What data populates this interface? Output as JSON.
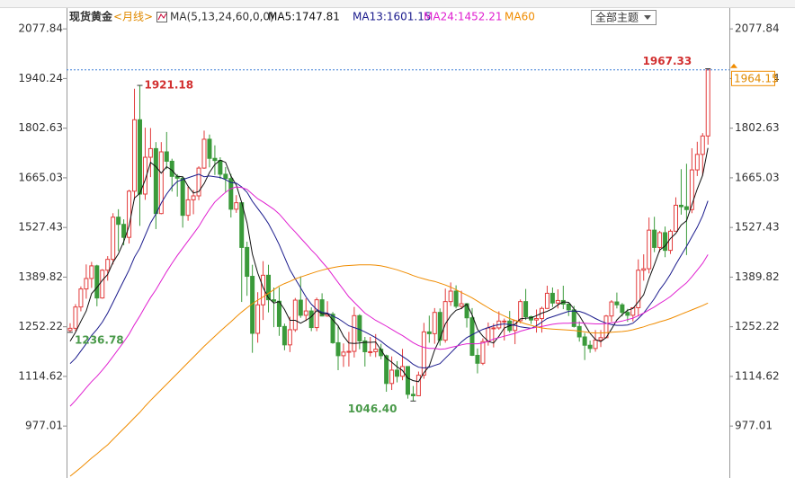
{
  "chart_data": {
    "type": "candlestick",
    "title": "现货黄金",
    "subtitle": "<月线>",
    "indicator": "MA(5,13,24,60,0,0)",
    "ylim": [
      833,
      2133
    ],
    "yticks": [
      977.01,
      1114.62,
      1252.22,
      1389.82,
      1527.43,
      1665.03,
      1802.63,
      1940.24,
      2077.84
    ],
    "up_color": "#e23b3b",
    "down_color": "#3a9a3a",
    "categories": [
      null,
      null,
      null,
      null,
      null,
      null,
      null,
      null,
      null,
      null,
      null,
      null,
      null,
      null,
      null,
      null,
      null,
      null,
      null,
      null,
      null,
      null,
      null,
      null,
      null,
      null,
      null,
      null,
      null,
      null,
      null,
      null,
      null,
      null,
      null,
      null,
      null,
      null,
      null,
      null,
      null,
      null,
      null,
      null,
      null,
      null,
      null,
      null,
      null,
      null,
      null,
      null,
      null,
      null,
      null,
      null,
      null,
      null,
      null,
      null,
      null,
      null,
      null,
      null,
      null,
      null,
      null,
      null,
      null,
      null,
      null,
      null,
      null,
      null,
      null,
      null,
      null,
      null,
      null,
      null,
      null,
      null,
      null,
      null,
      null,
      null,
      null,
      null,
      null,
      null,
      null,
      null,
      null,
      null,
      null,
      null,
      null,
      null,
      null,
      null,
      null,
      null,
      null,
      null,
      null,
      null,
      null,
      null,
      null,
      null,
      null,
      null,
      null,
      null,
      null,
      null,
      null,
      null,
      null,
      null
    ],
    "open": [
      1242,
      1248,
      1307,
      1357,
      1386,
      1421,
      1332,
      1409,
      1439,
      1556,
      1536,
      1500,
      1628,
      1826,
      1620,
      1722,
      1746,
      1566,
      1737,
      1711,
      1669,
      1664,
      1561,
      1604,
      1615,
      1692,
      1772,
      1719,
      1713,
      1675,
      1663,
      1578,
      1596,
      1472,
      1392,
      1234,
      1313,
      1395,
      1327,
      1323,
      1253,
      1202,
      1244,
      1326,
      1284,
      1296,
      1250,
      1327,
      1282,
      1287,
      1208,
      1172,
      1182,
      1184,
      1283,
      1213,
      1183,
      1183,
      1190,
      1172,
      1095,
      1132,
      1115,
      1142,
      1065,
      1061,
      1118,
      1238,
      1233,
      1292,
      1215,
      1322,
      1351,
      1309,
      1316,
      1277,
      1173,
      1151,
      1211,
      1249,
      1249,
      1268,
      1268,
      1242,
      1269,
      1322,
      1280,
      1271,
      1275,
      1303,
      1345,
      1318,
      1325,
      1315,
      1299,
      1253,
      1224,
      1201,
      1192,
      1215,
      1222,
      1282,
      1321,
      1313,
      1292,
      1284,
      1305,
      1409,
      1413,
      1520,
      1472,
      1513,
      1464,
      1517,
      1589,
      1585,
      1577,
      1687,
      1730,
      1781
    ],
    "high": [
      1262,
      1315,
      1364,
      1425,
      1432,
      1424,
      1412,
      1448,
      1567,
      1578,
      1550,
      1632,
      1912,
      1921.18,
      1804,
      1803,
      1764,
      1764,
      1792,
      1718,
      1675,
      1669,
      1640,
      1631,
      1697,
      1796,
      1785,
      1755,
      1722,
      1695,
      1676,
      1617,
      1598,
      1488,
      1424,
      1348,
      1434,
      1424,
      1361,
      1362,
      1261,
      1280,
      1332,
      1392,
      1331,
      1306,
      1333,
      1345,
      1323,
      1293,
      1256,
      1206,
      1238,
      1307,
      1287,
      1224,
      1224,
      1232,
      1205,
      1175,
      1170,
      1157,
      1191,
      1143,
      1088,
      1128,
      1263,
      1283,
      1304,
      1303,
      1358,
      1375,
      1367,
      1352,
      1318,
      1304,
      1192,
      1220,
      1264,
      1261,
      1295,
      1275,
      1296,
      1270,
      1328,
      1357,
      1283,
      1300,
      1308,
      1366,
      1361,
      1356,
      1366,
      1317,
      1310,
      1267,
      1235,
      1214,
      1243,
      1243,
      1285,
      1326,
      1347,
      1318,
      1302,
      1306,
      1439,
      1453,
      1555,
      1557,
      1518,
      1530,
      1522,
      1611,
      1689,
      1704,
      1747,
      1765,
      1789,
      1967.33
    ],
    "low": [
      1236.78,
      1240,
      1295,
      1330,
      1360,
      1309,
      1330,
      1380,
      1425,
      1462,
      1478,
      1483,
      1604,
      1532,
      1604,
      1667,
      1523,
      1564,
      1689,
      1627,
      1613,
      1527,
      1546,
      1564,
      1603,
      1690,
      1694,
      1673,
      1662,
      1625,
      1555,
      1568,
      1321,
      1338,
      1180,
      1208,
      1271,
      1292,
      1251,
      1227,
      1187,
      1182,
      1238,
      1277,
      1268,
      1240,
      1240,
      1281,
      1280,
      1205,
      1132,
      1141,
      1142,
      1167,
      1190,
      1142,
      1170,
      1168,
      1162,
      1072,
      1077,
      1098,
      1104,
      1053,
      1046.4,
      1062,
      1108,
      1208,
      1205,
      1200,
      1208,
      1310,
      1303,
      1301,
      1250,
      1171,
      1123,
      1146,
      1200,
      1195,
      1244,
      1214,
      1236,
      1204,
      1262,
      1271,
      1260,
      1236,
      1236,
      1302,
      1307,
      1303,
      1301,
      1282,
      1250,
      1211,
      1160,
      1180,
      1183,
      1196,
      1221,
      1266,
      1303,
      1281,
      1266,
      1267,
      1281,
      1380,
      1400,
      1459,
      1459,
      1445,
      1454,
      1517,
      1563,
      1451,
      1567,
      1670,
      1671,
      1757
    ],
    "close": [
      1248,
      1307,
      1357,
      1386,
      1421,
      1332,
      1409,
      1439,
      1556,
      1536,
      1500,
      1628,
      1826,
      1620,
      1722,
      1746,
      1566,
      1737,
      1711,
      1669,
      1664,
      1561,
      1604,
      1615,
      1692,
      1772,
      1719,
      1713,
      1675,
      1663,
      1578,
      1596,
      1472,
      1392,
      1234,
      1313,
      1395,
      1327,
      1323,
      1253,
      1202,
      1244,
      1326,
      1284,
      1296,
      1250,
      1327,
      1282,
      1287,
      1208,
      1172,
      1182,
      1184,
      1283,
      1213,
      1183,
      1183,
      1190,
      1172,
      1095,
      1132,
      1115,
      1142,
      1065,
      1061,
      1118,
      1238,
      1233,
      1292,
      1215,
      1322,
      1351,
      1309,
      1316,
      1277,
      1173,
      1151,
      1211,
      1249,
      1249,
      1268,
      1268,
      1242,
      1269,
      1322,
      1280,
      1271,
      1275,
      1303,
      1345,
      1318,
      1325,
      1315,
      1299,
      1253,
      1224,
      1201,
      1192,
      1215,
      1222,
      1282,
      1321,
      1313,
      1292,
      1284,
      1305,
      1409,
      1413,
      1520,
      1472,
      1513,
      1464,
      1517,
      1589,
      1585,
      1577,
      1687,
      1730,
      1781,
      1964.15
    ],
    "extreme_labels": {
      "high": {
        "13": "1921.18",
        "119": "1967.33"
      },
      "low": {
        "0": "1236.78",
        "64": "1046.40"
      }
    },
    "series": [
      {
        "name": "MA5:1747.81",
        "color": "#111111",
        "values": [
          1212,
          1237,
          1267,
          1296,
          1344,
          1361,
          1381,
          1397,
          1431,
          1454,
          1488,
          1532,
          1609,
          1622,
          1659,
          1708,
          1696,
          1678,
          1696,
          1686,
          1669,
          1668,
          1642,
          1623,
          1627,
          1649,
          1680,
          1702,
          1714,
          1708,
          1670,
          1645,
          1597,
          1540,
          1454,
          1401,
          1361,
          1332,
          1318,
          1322,
          1300,
          1270,
          1270,
          1262,
          1270,
          1280,
          1297,
          1288,
          1288,
          1271,
          1255,
          1226,
          1207,
          1206,
          1207,
          1209,
          1209,
          1210,
          1188,
          1165,
          1154,
          1141,
          1131,
          1110,
          1103,
          1100,
          1125,
          1143,
          1188,
          1219,
          1260,
          1283,
          1298,
          1303,
          1315,
          1285,
          1245,
          1226,
          1212,
          1207,
          1226,
          1249,
          1255,
          1259,
          1274,
          1276,
          1277,
          1283,
          1290,
          1295,
          1302,
          1313,
          1321,
          1320,
          1302,
          1283,
          1258,
          1234,
          1217,
          1211,
          1222,
          1246,
          1271,
          1286,
          1298,
          1303,
          1321,
          1341,
          1386,
          1424,
          1465,
          1476,
          1497,
          1511,
          1534,
          1546,
          1591,
          1634,
          1672,
          1747.81
        ]
      },
      {
        "name": "MA13:1601.15",
        "color": "#1a1a8c",
        "values": [
          1150,
          1165,
          1185,
          1205,
          1228,
          1245,
          1265,
          1290,
          1320,
          1350,
          1380,
          1410,
          1445,
          1470,
          1505,
          1540,
          1565,
          1595,
          1620,
          1640,
          1655,
          1660,
          1665,
          1670,
          1675,
          1668,
          1670,
          1668,
          1666,
          1660,
          1652,
          1650,
          1640,
          1625,
          1600,
          1580,
          1560,
          1538,
          1510,
          1480,
          1445,
          1410,
          1385,
          1360,
          1335,
          1315,
          1300,
          1292,
          1290,
          1282,
          1275,
          1265,
          1255,
          1250,
          1245,
          1238,
          1230,
          1222,
          1212,
          1200,
          1190,
          1180,
          1170,
          1160,
          1148,
          1140,
          1138,
          1140,
          1145,
          1150,
          1165,
          1180,
          1195,
          1210,
          1222,
          1230,
          1238,
          1245,
          1250,
          1255,
          1258,
          1260,
          1258,
          1256,
          1252,
          1250,
          1248,
          1255,
          1265,
          1275,
          1280,
          1285,
          1290,
          1295,
          1296,
          1295,
          1290,
          1283,
          1275,
          1268,
          1262,
          1258,
          1256,
          1256,
          1257,
          1262,
          1275,
          1290,
          1310,
          1330,
          1355,
          1375,
          1398,
          1425,
          1450,
          1475,
          1502,
          1528,
          1560,
          1601.15
        ]
      },
      {
        "name": "MA24:1452.21",
        "color": "#e020d0",
        "values": [
          1032,
          1048,
          1065,
          1083,
          1100,
          1115,
          1132,
          1150,
          1170,
          1190,
          1210,
          1232,
          1258,
          1282,
          1308,
          1333,
          1355,
          1380,
          1405,
          1428,
          1450,
          1470,
          1490,
          1510,
          1530,
          1555,
          1578,
          1598,
          1612,
          1625,
          1635,
          1640,
          1638,
          1633,
          1620,
          1607,
          1598,
          1588,
          1578,
          1565,
          1548,
          1530,
          1515,
          1498,
          1482,
          1465,
          1450,
          1432,
          1415,
          1395,
          1375,
          1355,
          1335,
          1320,
          1305,
          1290,
          1280,
          1270,
          1262,
          1254,
          1245,
          1236,
          1228,
          1218,
          1208,
          1200,
          1195,
          1192,
          1192,
          1190,
          1191,
          1195,
          1198,
          1202,
          1205,
          1205,
          1205,
          1207,
          1212,
          1218,
          1222,
          1226,
          1230,
          1234,
          1240,
          1244,
          1248,
          1251,
          1253,
          1256,
          1259,
          1261,
          1262,
          1262,
          1263,
          1263,
          1262,
          1261,
          1260,
          1260,
          1261,
          1263,
          1265,
          1268,
          1272,
          1276,
          1283,
          1290,
          1299,
          1307,
          1317,
          1326,
          1336,
          1349,
          1362,
          1374,
          1391,
          1409,
          1428,
          1452.21
        ]
      },
      {
        "name": "MA60",
        "color": "#f08c00",
        "values": [
          838,
          850,
          862,
          875,
          888,
          900,
          913,
          925,
          940,
          955,
          970,
          985,
          1000,
          1015,
          1032,
          1048,
          1063,
          1078,
          1093,
          1108,
          1123,
          1138,
          1153,
          1168,
          1183,
          1198,
          1212,
          1226,
          1240,
          1253,
          1266,
          1280,
          1293,
          1305,
          1316,
          1326,
          1335,
          1345,
          1355,
          1365,
          1372,
          1378,
          1385,
          1390,
          1395,
          1400,
          1405,
          1409,
          1413,
          1416,
          1419,
          1421,
          1422,
          1423,
          1424,
          1424,
          1424,
          1423,
          1421,
          1418,
          1414,
          1410,
          1405,
          1400,
          1394,
          1389,
          1385,
          1381,
          1378,
          1373,
          1368,
          1362,
          1355,
          1347,
          1340,
          1332,
          1323,
          1314,
          1305,
          1296,
          1289,
          1282,
          1275,
          1270,
          1265,
          1260,
          1256,
          1252,
          1249,
          1247,
          1246,
          1245,
          1244,
          1243,
          1242,
          1240,
          1238,
          1236,
          1235,
          1235,
          1236,
          1237,
          1238,
          1239,
          1241,
          1244,
          1248,
          1252,
          1257,
          1261,
          1266,
          1270,
          1275,
          1281,
          1287,
          1293,
          1299,
          1305,
          1311,
          1318
        ]
      }
    ]
  },
  "ui": {
    "theme_button": "全部主题"
  }
}
